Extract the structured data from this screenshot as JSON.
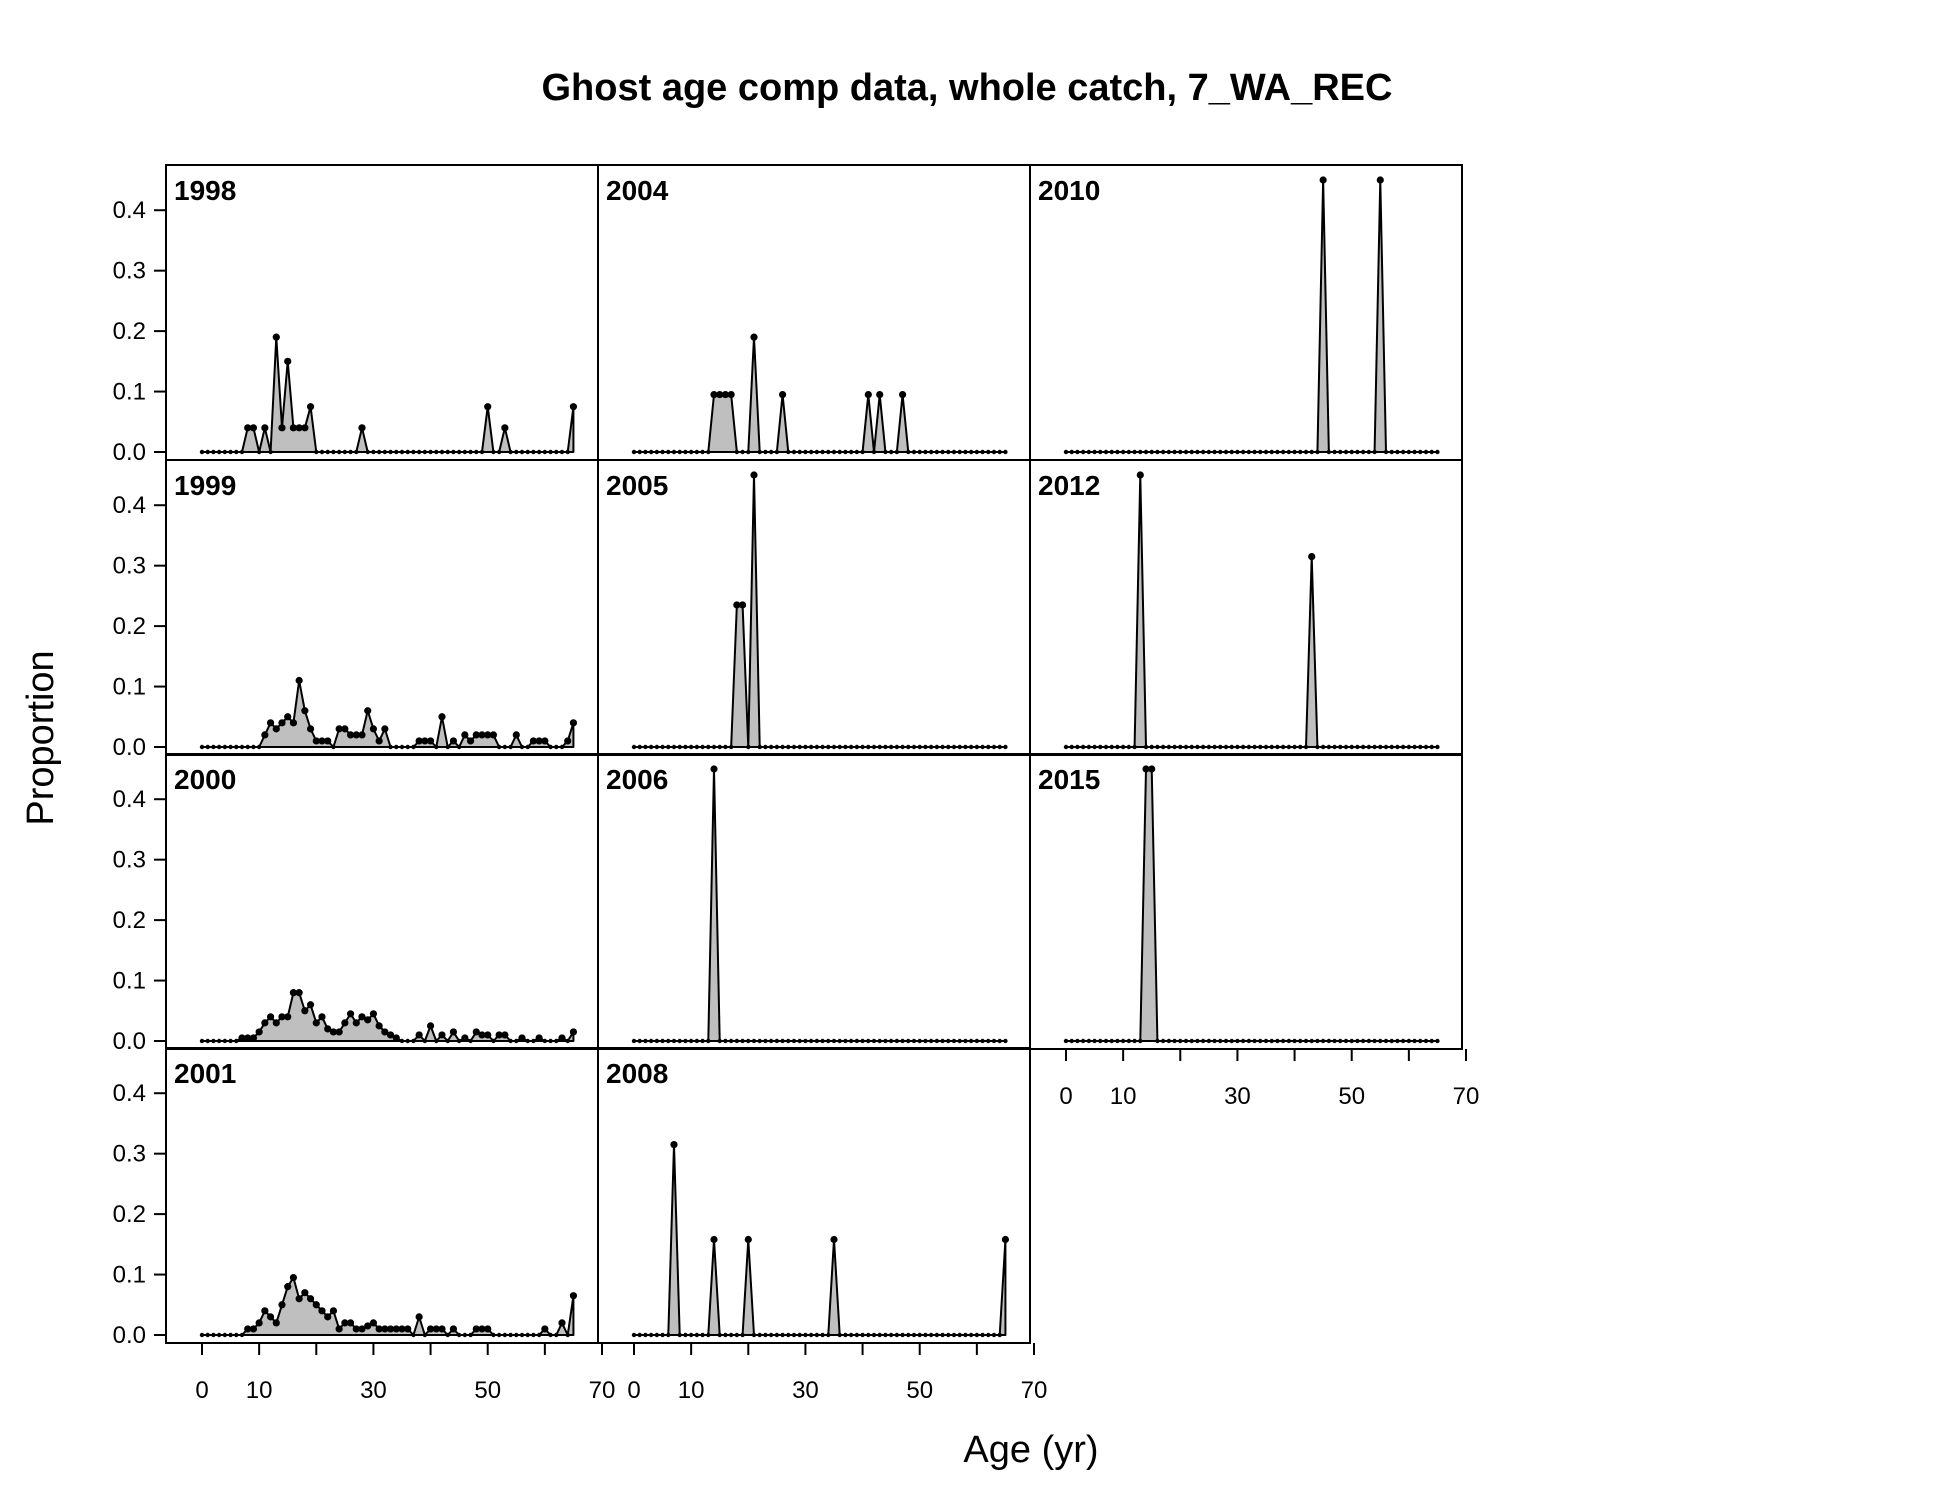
{
  "chart_data": {
    "type": "area",
    "title": "Ghost age comp data, whole catch, 7_WA_REC",
    "xlabel": "Age (yr)",
    "ylabel": "Proportion",
    "xlim": [
      0,
      65
    ],
    "ylim": [
      0,
      0.45
    ],
    "y_ticks": [
      "0.0",
      "0.1",
      "0.2",
      "0.3",
      "0.4"
    ],
    "x_ticks": [
      "0",
      "10",
      "30",
      "50",
      "70"
    ],
    "panels": [
      {
        "label": "1998",
        "values": {
          "8": 0.04,
          "9": 0.04,
          "11": 0.04,
          "13": 0.19,
          "14": 0.04,
          "15": 0.15,
          "16": 0.04,
          "17": 0.04,
          "18": 0.04,
          "19": 0.075,
          "28": 0.04,
          "50": 0.075,
          "53": 0.04,
          "65": 0.075
        }
      },
      {
        "label": "1999",
        "values": {
          "11": 0.02,
          "12": 0.04,
          "13": 0.03,
          "14": 0.04,
          "15": 0.05,
          "16": 0.04,
          "17": 0.11,
          "18": 0.06,
          "19": 0.03,
          "20": 0.01,
          "21": 0.01,
          "22": 0.01,
          "24": 0.03,
          "25": 0.03,
          "26": 0.02,
          "27": 0.02,
          "28": 0.02,
          "29": 0.06,
          "30": 0.03,
          "31": 0.01,
          "32": 0.03,
          "38": 0.01,
          "39": 0.01,
          "40": 0.01,
          "42": 0.05,
          "44": 0.01,
          "46": 0.02,
          "47": 0.01,
          "48": 0.02,
          "49": 0.02,
          "50": 0.02,
          "51": 0.02,
          "55": 0.02,
          "58": 0.01,
          "59": 0.01,
          "60": 0.01,
          "64": 0.01,
          "65": 0.04
        }
      },
      {
        "label": "2000",
        "values": {
          "7": 0.005,
          "8": 0.005,
          "9": 0.005,
          "10": 0.015,
          "11": 0.03,
          "12": 0.04,
          "13": 0.03,
          "14": 0.04,
          "15": 0.04,
          "16": 0.08,
          "17": 0.08,
          "18": 0.05,
          "19": 0.06,
          "20": 0.03,
          "21": 0.04,
          "22": 0.02,
          "23": 0.015,
          "24": 0.015,
          "25": 0.03,
          "26": 0.045,
          "27": 0.03,
          "28": 0.04,
          "29": 0.035,
          "30": 0.045,
          "31": 0.025,
          "32": 0.015,
          "33": 0.01,
          "34": 0.005,
          "38": 0.01,
          "40": 0.025,
          "42": 0.01,
          "44": 0.015,
          "46": 0.005,
          "48": 0.015,
          "49": 0.01,
          "50": 0.01,
          "52": 0.01,
          "53": 0.01,
          "56": 0.005,
          "59": 0.005,
          "63": 0.005,
          "65": 0.015
        }
      },
      {
        "label": "2001",
        "values": {
          "8": 0.01,
          "9": 0.01,
          "10": 0.02,
          "11": 0.04,
          "12": 0.03,
          "13": 0.02,
          "14": 0.05,
          "15": 0.08,
          "16": 0.095,
          "17": 0.06,
          "18": 0.07,
          "19": 0.06,
          "20": 0.05,
          "21": 0.04,
          "22": 0.03,
          "23": 0.04,
          "24": 0.01,
          "25": 0.02,
          "26": 0.02,
          "27": 0.01,
          "28": 0.01,
          "29": 0.015,
          "30": 0.02,
          "31": 0.01,
          "32": 0.01,
          "33": 0.01,
          "34": 0.01,
          "35": 0.01,
          "36": 0.01,
          "38": 0.03,
          "40": 0.01,
          "41": 0.01,
          "42": 0.01,
          "44": 0.01,
          "48": 0.01,
          "49": 0.01,
          "50": 0.01,
          "60": 0.01,
          "63": 0.02,
          "65": 0.065
        }
      },
      {
        "label": "2004",
        "values": {
          "14": 0.095,
          "15": 0.095,
          "16": 0.095,
          "17": 0.095,
          "21": 0.19,
          "26": 0.095,
          "41": 0.095,
          "43": 0.095,
          "47": 0.095
        }
      },
      {
        "label": "2005",
        "values": {
          "18": 0.235,
          "19": 0.235,
          "21": 0.5
        }
      },
      {
        "label": "2006",
        "values": {
          "14": 0.5
        }
      },
      {
        "label": "2008",
        "values": {
          "7": 0.315,
          "14": 0.158,
          "20": 0.158,
          "35": 0.158,
          "65": 0.158
        }
      },
      {
        "label": "2010",
        "values": {
          "45": 0.5,
          "55": 0.5
        }
      },
      {
        "label": "2012",
        "values": {
          "13": 0.5,
          "43": 0.315
        }
      },
      {
        "label": "2015",
        "values": {
          "14": 0.5,
          "15": 0.5
        }
      }
    ]
  }
}
